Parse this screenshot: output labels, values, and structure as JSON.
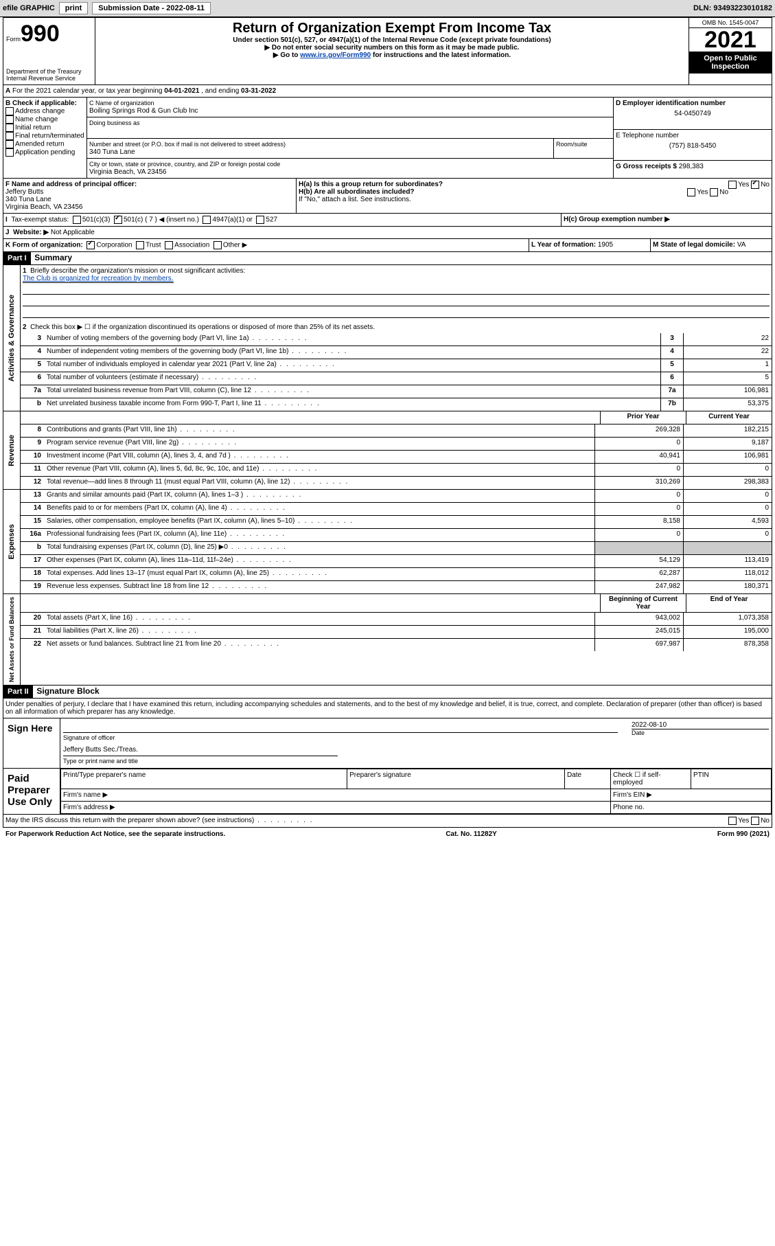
{
  "toolbar": {
    "efile": "efile GRAPHIC",
    "print": "print",
    "subdate_label": "Submission Date - ",
    "subdate": "2022-08-11",
    "dln_label": "DLN: ",
    "dln": "93493223010182"
  },
  "hdr": {
    "form": "Form",
    "num": "990",
    "title": "Return of Organization Exempt From Income Tax",
    "sub1": "Under section 501(c), 527, or 4947(a)(1) of the Internal Revenue Code (except private foundations)",
    "sub2": "▶ Do not enter social security numbers on this form as it may be made public.",
    "sub3": "▶ Go to ",
    "link": "www.irs.gov/Form990",
    "sub4": " for instructions and the latest information.",
    "dept": "Department of the Treasury",
    "irs": "Internal Revenue Service",
    "omb": "OMB No. 1545-0047",
    "year": "2021",
    "banner": "Open to Public Inspection"
  },
  "A": {
    "text": "For the 2021 calendar year, or tax year beginning ",
    "begin": "04-01-2021",
    "mid": " , and ending ",
    "end": "03-31-2022"
  },
  "B": {
    "label": "B Check if applicable:",
    "items": [
      "Address change",
      "Name change",
      "Initial return",
      "Final return/terminated",
      "Amended return",
      "Application pending"
    ]
  },
  "C": {
    "label": "C Name of organization",
    "name": "Boiling Springs Rod & Gun Club Inc",
    "dba": "Doing business as",
    "addr_label": "Number and street (or P.O. box if mail is not delivered to street address)",
    "room": "Room/suite",
    "addr": "340 Tuna Lane",
    "city_label": "City or town, state or province, country, and ZIP or foreign postal code",
    "city": "Virginia Beach, VA  23456"
  },
  "D": {
    "label": "D Employer identification number",
    "val": "54-0450749"
  },
  "E": {
    "label": "E Telephone number",
    "val": "(757) 818-5450"
  },
  "G": {
    "label": "G Gross receipts $ ",
    "val": "298,383"
  },
  "F": {
    "label": "F  Name and address of principal officer:",
    "name": "Jeffery Butts",
    "addr": "340 Tuna Lane",
    "city": "Virginia Beach, VA  23456"
  },
  "H": {
    "a": "H(a)  Is this a group return for subordinates?",
    "b": "H(b)  Are all subordinates included?",
    "note": "If \"No,\" attach a list. See instructions.",
    "c": "H(c)  Group exemption number ▶",
    "yes": "Yes",
    "no": "No"
  },
  "I": {
    "label": "Tax-exempt status:",
    "opts": [
      "501(c)(3)",
      "501(c) ( 7 ) ◀ (insert no.)",
      "4947(a)(1) or",
      "527"
    ]
  },
  "J": {
    "label": "Website: ▶ ",
    "val": "Not Applicable"
  },
  "K": {
    "label": "K Form of organization:",
    "opts": [
      "Corporation",
      "Trust",
      "Association",
      "Other ▶"
    ]
  },
  "L": {
    "label": "L Year of formation: ",
    "val": "1905"
  },
  "M": {
    "label": "M State of legal domicile: ",
    "val": "VA"
  },
  "parts": {
    "p1": "Part I",
    "p1t": "Summary",
    "p2": "Part II",
    "p2t": "Signature Block"
  },
  "summary": {
    "l1": "Briefly describe the organization's mission or most significant activities:",
    "mission": "The Club is organized for recreation by members.",
    "l2": "Check this box ▶ ☐  if the organization discontinued its operations or disposed of more than 25% of its net assets.",
    "rows": [
      {
        "n": "3",
        "d": "Number of voting members of the governing body (Part VI, line 1a)",
        "b": "3",
        "v": "22"
      },
      {
        "n": "4",
        "d": "Number of independent voting members of the governing body (Part VI, line 1b)",
        "b": "4",
        "v": "22"
      },
      {
        "n": "5",
        "d": "Total number of individuals employed in calendar year 2021 (Part V, line 2a)",
        "b": "5",
        "v": "1"
      },
      {
        "n": "6",
        "d": "Total number of volunteers (estimate if necessary)",
        "b": "6",
        "v": "5"
      },
      {
        "n": "7a",
        "d": "Total unrelated business revenue from Part VIII, column (C), line 12",
        "b": "7a",
        "v": "106,981"
      },
      {
        "n": "b",
        "d": "Net unrelated business taxable income from Form 990-T, Part I, line 11",
        "b": "7b",
        "v": "53,375"
      }
    ],
    "hdr_py": "Prior Year",
    "hdr_cy": "Current Year",
    "rev": [
      {
        "n": "8",
        "d": "Contributions and grants (Part VIII, line 1h)",
        "p": "269,328",
        "c": "182,215"
      },
      {
        "n": "9",
        "d": "Program service revenue (Part VIII, line 2g)",
        "p": "0",
        "c": "9,187"
      },
      {
        "n": "10",
        "d": "Investment income (Part VIII, column (A), lines 3, 4, and 7d )",
        "p": "40,941",
        "c": "106,981"
      },
      {
        "n": "11",
        "d": "Other revenue (Part VIII, column (A), lines 5, 6d, 8c, 9c, 10c, and 11e)",
        "p": "0",
        "c": "0"
      },
      {
        "n": "12",
        "d": "Total revenue—add lines 8 through 11 (must equal Part VIII, column (A), line 12)",
        "p": "310,269",
        "c": "298,383"
      }
    ],
    "exp": [
      {
        "n": "13",
        "d": "Grants and similar amounts paid (Part IX, column (A), lines 1–3 )",
        "p": "0",
        "c": "0"
      },
      {
        "n": "14",
        "d": "Benefits paid to or for members (Part IX, column (A), line 4)",
        "p": "0",
        "c": "0"
      },
      {
        "n": "15",
        "d": "Salaries, other compensation, employee benefits (Part IX, column (A), lines 5–10)",
        "p": "8,158",
        "c": "4,593"
      },
      {
        "n": "16a",
        "d": "Professional fundraising fees (Part IX, column (A), line 11e)",
        "p": "0",
        "c": "0"
      },
      {
        "n": "b",
        "d": "Total fundraising expenses (Part IX, column (D), line 25) ▶0",
        "p": "",
        "c": "",
        "shade": true
      },
      {
        "n": "17",
        "d": "Other expenses (Part IX, column (A), lines 11a–11d, 11f–24e)",
        "p": "54,129",
        "c": "113,419"
      },
      {
        "n": "18",
        "d": "Total expenses. Add lines 13–17 (must equal Part IX, column (A), line 25)",
        "p": "62,287",
        "c": "118,012"
      },
      {
        "n": "19",
        "d": "Revenue less expenses. Subtract line 18 from line 12",
        "p": "247,982",
        "c": "180,371"
      }
    ],
    "hdr_by": "Beginning of Current Year",
    "hdr_ey": "End of Year",
    "na": [
      {
        "n": "20",
        "d": "Total assets (Part X, line 16)",
        "p": "943,002",
        "c": "1,073,358"
      },
      {
        "n": "21",
        "d": "Total liabilities (Part X, line 26)",
        "p": "245,015",
        "c": "195,000"
      },
      {
        "n": "22",
        "d": "Net assets or fund balances. Subtract line 21 from line 20",
        "p": "697,987",
        "c": "878,358"
      }
    ],
    "sidelabels": {
      "ag": "Activities & Governance",
      "rev": "Revenue",
      "exp": "Expenses",
      "na": "Net Assets or Fund Balances"
    }
  },
  "sig": {
    "decl": "Under penalties of perjury, I declare that I have examined this return, including accompanying schedules and statements, and to the best of my knowledge and belief, it is true, correct, and complete. Declaration of preparer (other than officer) is based on all information of which preparer has any knowledge.",
    "sign": "Sign Here",
    "sigoff": "Signature of officer",
    "date": "Date",
    "sigdate": "2022-08-10",
    "name": "Jeffery Butts Sec./Treas.",
    "typeprint": "Type or print name and title",
    "paid": "Paid Preparer Use Only",
    "cols": [
      "Print/Type preparer's name",
      "Preparer's signature",
      "Date"
    ],
    "check": "Check ☐ if self-employed",
    "ptin": "PTIN",
    "firmname": "Firm's name  ▶",
    "firmein": "Firm's EIN ▶",
    "firmaddr": "Firm's address ▶",
    "phone": "Phone no.",
    "discuss": "May the IRS discuss this return with the preparer shown above? (see instructions)"
  },
  "footer": {
    "l": "For Paperwork Reduction Act Notice, see the separate instructions.",
    "c": "Cat. No. 11282Y",
    "r": "Form 990 (2021)"
  }
}
